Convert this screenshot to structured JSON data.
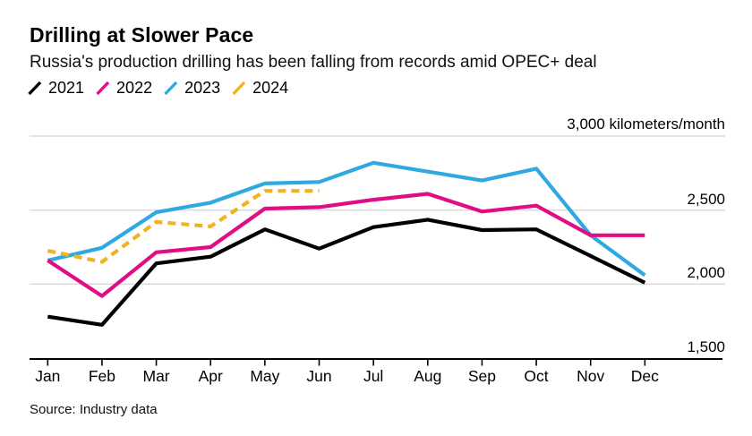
{
  "header": {
    "title": "Drilling at Slower Pace",
    "subtitle": "Russia's production drilling has been falling from records amid OPEC+ deal"
  },
  "source": "Source: Industry data",
  "colors": {
    "grid": "#d9d9d9",
    "axis": "#000000",
    "black_series": "#000000",
    "magenta_series": "#e00d84",
    "cyan_series": "#2fa9e0",
    "yellow_series": "#f0b323"
  },
  "chart_data": {
    "type": "line",
    "title": "Drilling at Slower Pace",
    "subtitle": "Russia's production drilling has been falling from records amid OPEC+ deal",
    "unit_label": "3,000 kilometers/month",
    "ylabel": "kilometers/month",
    "x_categories": [
      "Jan",
      "Feb",
      "Mar",
      "Apr",
      "May",
      "Jun",
      "Jul",
      "Aug",
      "Sep",
      "Oct",
      "Nov",
      "Dec"
    ],
    "ylim": [
      1500,
      3000
    ],
    "grid": "horizontal-only",
    "legend_position": "top-left",
    "y_gridlines_light": [
      3000,
      2500,
      2000
    ],
    "y_axis_value": 1500,
    "y_axis_labels": [
      {
        "value": 2500,
        "label": "2,500"
      },
      {
        "value": 2000,
        "label": "2,000"
      },
      {
        "value": 1500,
        "label": "1,500"
      }
    ],
    "draw_order": [
      2,
      0,
      1,
      3
    ],
    "series": [
      {
        "name": "2021",
        "color": "#000000",
        "dash": false,
        "values": [
          1780,
          1725,
          2140,
          2185,
          2370,
          2240,
          2385,
          2435,
          2365,
          2370,
          2190,
          2010
        ]
      },
      {
        "name": "2022",
        "color": "#e00d84",
        "dash": false,
        "values": [
          2160,
          1920,
          2215,
          2250,
          2510,
          2520,
          2570,
          2610,
          2490,
          2530,
          2330,
          2330
        ]
      },
      {
        "name": "2023",
        "color": "#2fa9e0",
        "dash": false,
        "values": [
          2160,
          2245,
          2485,
          2550,
          2680,
          2690,
          2820,
          2760,
          2700,
          2780,
          2330,
          2060
        ]
      },
      {
        "name": "2024",
        "color": "#f0b323",
        "dash": true,
        "values": [
          2225,
          2150,
          2420,
          2390,
          2630,
          2630
        ]
      }
    ]
  }
}
